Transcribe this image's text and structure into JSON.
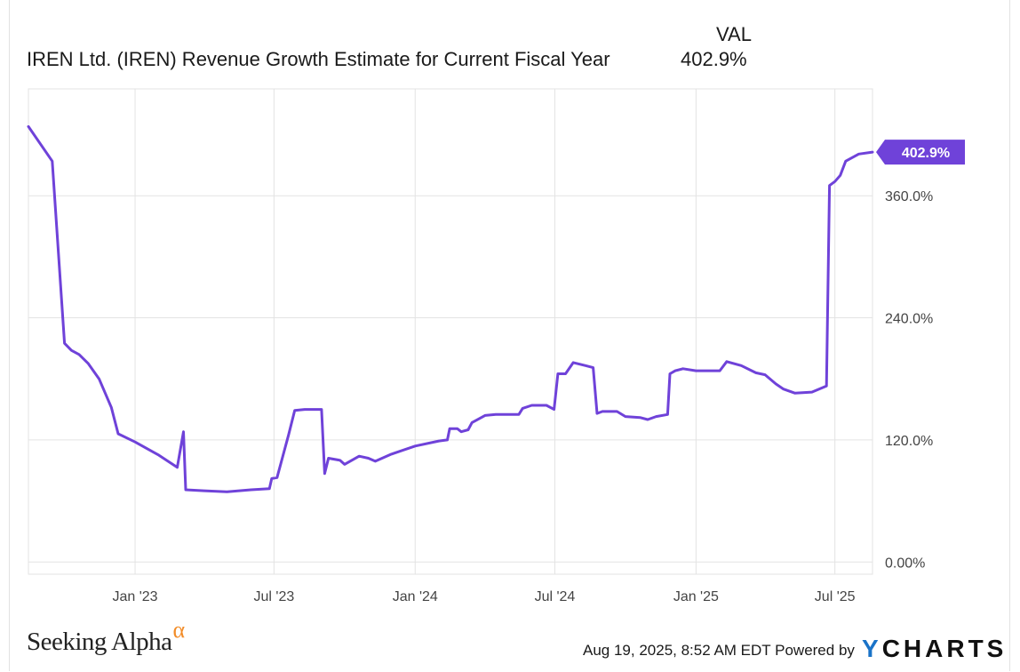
{
  "legend": {
    "column_header": "VAL",
    "series_name": "IREN Ltd. (IREN) Revenue Growth Estimate for Current Fiscal Year",
    "series_value": "402.9%"
  },
  "footer": {
    "logo_text": "Seeking Alpha",
    "logo_mark": "α",
    "timestamp": "Aug 19, 2025, 8:52 AM EDT",
    "powered_by": "Powered by",
    "brand_y": "Y",
    "brand_rest": "CHARTS"
  },
  "colors": {
    "line": "#6f42d9",
    "grid": "#e3e3e3",
    "axis_text": "#444444",
    "label_bg": "#6f42d9",
    "logo_alpha": "#f28c28",
    "brand_y": "#1a73c8"
  },
  "chart_data": {
    "type": "line",
    "title": "IREN Ltd. (IREN) Revenue Growth Estimate for Current Fiscal Year",
    "xlabel": "",
    "ylabel": "",
    "x_ticks": [
      {
        "label": "Jan '23",
        "date": "2023-01-01"
      },
      {
        "label": "Jul '23",
        "date": "2023-07-01"
      },
      {
        "label": "Jan '24",
        "date": "2024-01-01"
      },
      {
        "label": "Jul '24",
        "date": "2024-07-01"
      },
      {
        "label": "Jan '25",
        "date": "2025-01-01"
      },
      {
        "label": "Jul '25",
        "date": "2025-07-01"
      }
    ],
    "y_ticks": [
      {
        "label": "0.00%",
        "value": 0
      },
      {
        "label": "120.0%",
        "value": 120
      },
      {
        "label": "240.0%",
        "value": 240
      },
      {
        "label": "360.0%",
        "value": 360
      }
    ],
    "xlim": [
      "2022-08-15",
      "2025-08-19"
    ],
    "ylim": [
      -12,
      465
    ],
    "grid": true,
    "legend_position": "top",
    "last_value_label": "402.9%",
    "series": [
      {
        "name": "IREN Ltd. (IREN) Revenue Growth Estimate for Current Fiscal Year",
        "points": [
          [
            "2022-08-15",
            428
          ],
          [
            "2022-09-15",
            394
          ],
          [
            "2022-10-01",
            215
          ],
          [
            "2022-10-10",
            208
          ],
          [
            "2022-10-20",
            204
          ],
          [
            "2022-11-01",
            195
          ],
          [
            "2022-11-15",
            180
          ],
          [
            "2022-12-01",
            152
          ],
          [
            "2022-12-10",
            126
          ],
          [
            "2023-01-01",
            118
          ],
          [
            "2023-02-01",
            105
          ],
          [
            "2023-02-25",
            93
          ],
          [
            "2023-03-05",
            128
          ],
          [
            "2023-03-08",
            71
          ],
          [
            "2023-04-01",
            70
          ],
          [
            "2023-05-01",
            69
          ],
          [
            "2023-06-01",
            71
          ],
          [
            "2023-06-25",
            72
          ],
          [
            "2023-06-28",
            82
          ],
          [
            "2023-07-05",
            83
          ],
          [
            "2023-07-20",
            125
          ],
          [
            "2023-07-28",
            149
          ],
          [
            "2023-08-10",
            150
          ],
          [
            "2023-09-01",
            150
          ],
          [
            "2023-09-05",
            87
          ],
          [
            "2023-09-10",
            102
          ],
          [
            "2023-09-25",
            100
          ],
          [
            "2023-10-01",
            96
          ],
          [
            "2023-10-20",
            104
          ],
          [
            "2023-11-01",
            102
          ],
          [
            "2023-11-10",
            99
          ],
          [
            "2023-12-01",
            106
          ],
          [
            "2024-01-01",
            114
          ],
          [
            "2024-02-01",
            119
          ],
          [
            "2024-02-12",
            120
          ],
          [
            "2024-02-15",
            131
          ],
          [
            "2024-02-25",
            131
          ],
          [
            "2024-03-01",
            128
          ],
          [
            "2024-03-10",
            130
          ],
          [
            "2024-03-15",
            137
          ],
          [
            "2024-04-01",
            144
          ],
          [
            "2024-04-15",
            145
          ],
          [
            "2024-05-01",
            145
          ],
          [
            "2024-05-15",
            145
          ],
          [
            "2024-05-20",
            151
          ],
          [
            "2024-06-01",
            154
          ],
          [
            "2024-06-20",
            154
          ],
          [
            "2024-06-30",
            150
          ],
          [
            "2024-07-05",
            185
          ],
          [
            "2024-07-15",
            185
          ],
          [
            "2024-07-25",
            196
          ],
          [
            "2024-08-10",
            193
          ],
          [
            "2024-08-20",
            191
          ],
          [
            "2024-08-25",
            146
          ],
          [
            "2024-09-01",
            148
          ],
          [
            "2024-09-20",
            148
          ],
          [
            "2024-10-01",
            143
          ],
          [
            "2024-10-20",
            142
          ],
          [
            "2024-10-30",
            140
          ],
          [
            "2024-11-10",
            143
          ],
          [
            "2024-11-25",
            145
          ],
          [
            "2024-11-28",
            185
          ],
          [
            "2024-12-05",
            188
          ],
          [
            "2024-12-15",
            190
          ],
          [
            "2025-01-01",
            188
          ],
          [
            "2025-02-01",
            188
          ],
          [
            "2025-02-10",
            197
          ],
          [
            "2025-03-01",
            193
          ],
          [
            "2025-03-20",
            186
          ],
          [
            "2025-04-01",
            184
          ],
          [
            "2025-04-15",
            175
          ],
          [
            "2025-04-25",
            170
          ],
          [
            "2025-05-10",
            166
          ],
          [
            "2025-06-01",
            167
          ],
          [
            "2025-06-20",
            173
          ],
          [
            "2025-06-24",
            370
          ],
          [
            "2025-07-01",
            374
          ],
          [
            "2025-07-08",
            380
          ],
          [
            "2025-07-15",
            394
          ],
          [
            "2025-08-01",
            401
          ],
          [
            "2025-08-19",
            402.9
          ]
        ]
      }
    ]
  }
}
